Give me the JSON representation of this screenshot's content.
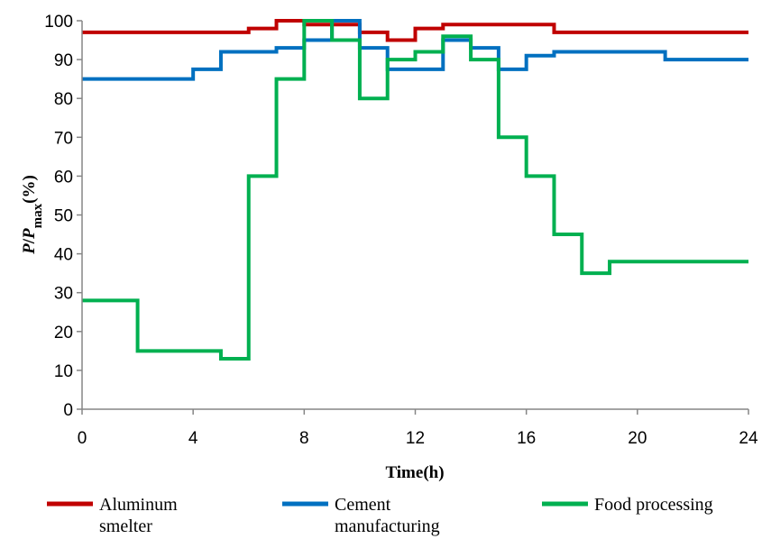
{
  "chart_data": {
    "type": "line",
    "step": true,
    "xlabel": "Time(h)",
    "ylabel": "P/Pmax(%)",
    "ylabel_parts": {
      "p1": "P",
      "slash": "/",
      "p2": "P",
      "sub": "max",
      "unit": "(%)"
    },
    "xlim": [
      0,
      24
    ],
    "ylim": [
      0,
      100
    ],
    "x_ticks": [
      0,
      4,
      8,
      12,
      16,
      20,
      24
    ],
    "y_ticks": [
      0,
      10,
      20,
      30,
      40,
      50,
      60,
      70,
      80,
      90,
      100
    ],
    "grid": false,
    "legend_position": "bottom",
    "series": [
      {
        "name": "Aluminum smelter",
        "legend_lines": [
          "Aluminum",
          "smelter"
        ],
        "color": "#C00000",
        "values": [
          97,
          97,
          97,
          97,
          97,
          97,
          98,
          100,
          99,
          99,
          97,
          95,
          98,
          99,
          99,
          99,
          99,
          97,
          97,
          97,
          97,
          97,
          97,
          97
        ]
      },
      {
        "name": "Cement manufacturing",
        "legend_lines": [
          "Cement",
          "manufacturing"
        ],
        "color": "#0070C0",
        "values": [
          85,
          85,
          85,
          85,
          87.5,
          92,
          92,
          93,
          95,
          100,
          93,
          87.5,
          87.5,
          95,
          93,
          87.5,
          91,
          92,
          92,
          92,
          92,
          90,
          90,
          90
        ]
      },
      {
        "name": "Food processing",
        "legend_lines": [
          "Food processing"
        ],
        "color": "#00B050",
        "values": [
          28,
          28,
          15,
          15,
          15,
          13,
          60,
          85,
          100,
          95,
          80,
          90,
          92,
          96,
          90,
          70,
          60,
          45,
          35,
          38,
          38,
          38,
          38,
          38
        ]
      }
    ]
  }
}
